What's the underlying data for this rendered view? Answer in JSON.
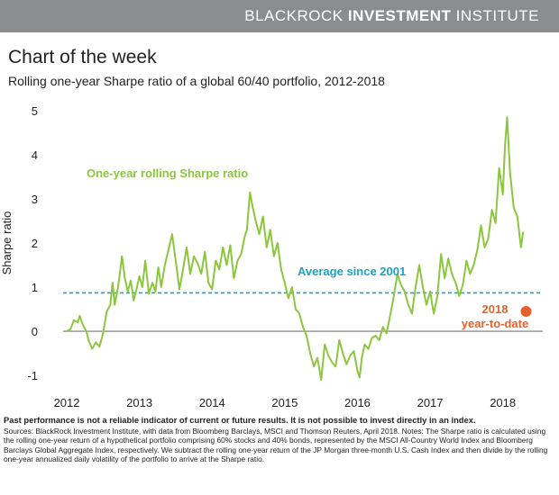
{
  "brand": {
    "first": "BLACKROCK",
    "second": "INVESTMENT",
    "third": "INSTITUTE"
  },
  "title": "Chart of the week",
  "subtitle": "Rolling one-year Sharpe ratio of a global 60/40 portfolio, 2012-2018",
  "footer": {
    "disclaimer": "Past performance is not a reliable indicator of current or future results. It is not possible to invest directly in an index.",
    "sources": "Sources: BlackRock Investment Institute, with data from Bloomberg Barclays, MSCI and Thomson Reuters, April 2018.   Notes: The Sharpe ratio is calculated using the rolling one-year return of a hypothetical portfolio comprising 60% stocks and 40% bonds, represented by the MSCI All-Country World Index and Bloomberg Barclays Global Aggregate Index, respectively. We subtract the rolling one-year return of the JP Morgan three-month U.S. Cash Index and then divide by the rolling one-year annualized daily volatility of the portfolio to arrive at the Sharpe ratio."
  },
  "colors": {
    "line": "#8cc63f",
    "average": "#1aa3c6",
    "ytd": "#e3622b",
    "zero": "#777777",
    "brandbar": "#8a8c8e"
  },
  "chart_data": {
    "type": "line",
    "ylabel": "Sharpe ratio",
    "xlabel": "",
    "ylim": [
      -1.1,
      5.1
    ],
    "xlim": [
      2011.95,
      2018.55
    ],
    "yticks": [
      -1,
      0,
      1,
      2,
      3,
      4,
      5
    ],
    "xticks": [
      2012,
      2013,
      2014,
      2015,
      2016,
      2017,
      2018
    ],
    "grid": false,
    "series": [
      {
        "name": "One-year rolling Sharpe ratio",
        "x": [
          2012.0,
          2012.05,
          2012.1,
          2012.15,
          2012.18,
          2012.22,
          2012.27,
          2012.3,
          2012.35,
          2012.4,
          2012.45,
          2012.5,
          2012.55,
          2012.6,
          2012.63,
          2012.66,
          2012.7,
          2012.73,
          2012.76,
          2012.8,
          2012.84,
          2012.88,
          2012.92,
          2012.96,
          2013.0,
          2013.04,
          2013.08,
          2013.13,
          2013.18,
          2013.22,
          2013.26,
          2013.3,
          2013.35,
          2013.4,
          2013.45,
          2013.5,
          2013.55,
          2013.6,
          2013.65,
          2013.7,
          2013.75,
          2013.8,
          2013.85,
          2013.9,
          2013.95,
          2014.0,
          2014.05,
          2014.1,
          2014.15,
          2014.2,
          2014.25,
          2014.3,
          2014.35,
          2014.4,
          2014.45,
          2014.48,
          2014.52,
          2014.56,
          2014.6,
          2014.65,
          2014.7,
          2014.75,
          2014.8,
          2014.85,
          2014.9,
          2014.95,
          2015.0,
          2015.05,
          2015.1,
          2015.15,
          2015.2,
          2015.25,
          2015.3,
          2015.35,
          2015.4,
          2015.45,
          2015.5,
          2015.55,
          2015.6,
          2015.65,
          2015.7,
          2015.75,
          2015.8,
          2015.85,
          2015.9,
          2015.95,
          2016.0,
          2016.03,
          2016.06,
          2016.1,
          2016.15,
          2016.2,
          2016.25,
          2016.3,
          2016.35,
          2016.4,
          2016.45,
          2016.5,
          2016.55,
          2016.6,
          2016.65,
          2016.7,
          2016.75,
          2016.8,
          2016.85,
          2016.9,
          2016.95,
          2017.0,
          2017.05,
          2017.1,
          2017.15,
          2017.2,
          2017.25,
          2017.3,
          2017.35,
          2017.4,
          2017.45,
          2017.5,
          2017.55,
          2017.6,
          2017.65,
          2017.7,
          2017.75,
          2017.8,
          2017.85,
          2017.9,
          2017.95,
          2018.0,
          2018.03,
          2018.06,
          2018.1,
          2018.15,
          2018.2,
          2018.25,
          2018.28
        ],
        "y": [
          0.0,
          0.05,
          0.25,
          0.2,
          0.35,
          0.15,
          0.0,
          -0.2,
          -0.4,
          -0.25,
          -0.35,
          -0.05,
          0.45,
          0.6,
          1.1,
          0.6,
          0.95,
          1.3,
          1.7,
          1.2,
          0.9,
          1.15,
          0.7,
          0.95,
          1.25,
          1.0,
          1.6,
          0.85,
          1.1,
          0.9,
          1.45,
          1.0,
          1.5,
          1.85,
          2.2,
          1.6,
          0.95,
          1.4,
          1.9,
          1.3,
          1.7,
          1.55,
          1.3,
          1.8,
          1.1,
          0.95,
          1.6,
          1.4,
          1.9,
          1.5,
          1.95,
          1.2,
          1.6,
          1.75,
          2.15,
          2.3,
          3.15,
          2.8,
          2.5,
          2.2,
          2.6,
          1.9,
          2.3,
          1.7,
          2.0,
          1.4,
          1.1,
          0.75,
          1.0,
          0.5,
          0.4,
          0.1,
          -0.1,
          -0.5,
          -0.8,
          -0.6,
          -1.1,
          -0.3,
          -0.55,
          -0.7,
          -0.8,
          -0.2,
          -0.5,
          -0.75,
          -0.55,
          -0.45,
          -0.9,
          -1.05,
          -0.6,
          -0.3,
          -0.4,
          -0.15,
          -0.1,
          -0.2,
          0.1,
          -0.05,
          0.35,
          0.8,
          1.3,
          1.05,
          0.9,
          0.6,
          0.4,
          1.0,
          1.5,
          1.0,
          0.6,
          0.9,
          0.4,
          0.8,
          1.75,
          1.2,
          1.65,
          1.3,
          1.1,
          0.8,
          1.05,
          1.6,
          1.3,
          1.5,
          1.85,
          2.4,
          1.9,
          2.1,
          2.75,
          2.45,
          3.7,
          3.1,
          4.2,
          4.85,
          3.6,
          2.8,
          2.6,
          1.9,
          2.25
        ]
      }
    ],
    "average_line": {
      "label": "Average since 2001",
      "value": 0.87
    },
    "ytd_point": {
      "label_line1": "2018",
      "label_line2": "year-to-date",
      "x": 2018.32,
      "y": 0.45
    }
  }
}
